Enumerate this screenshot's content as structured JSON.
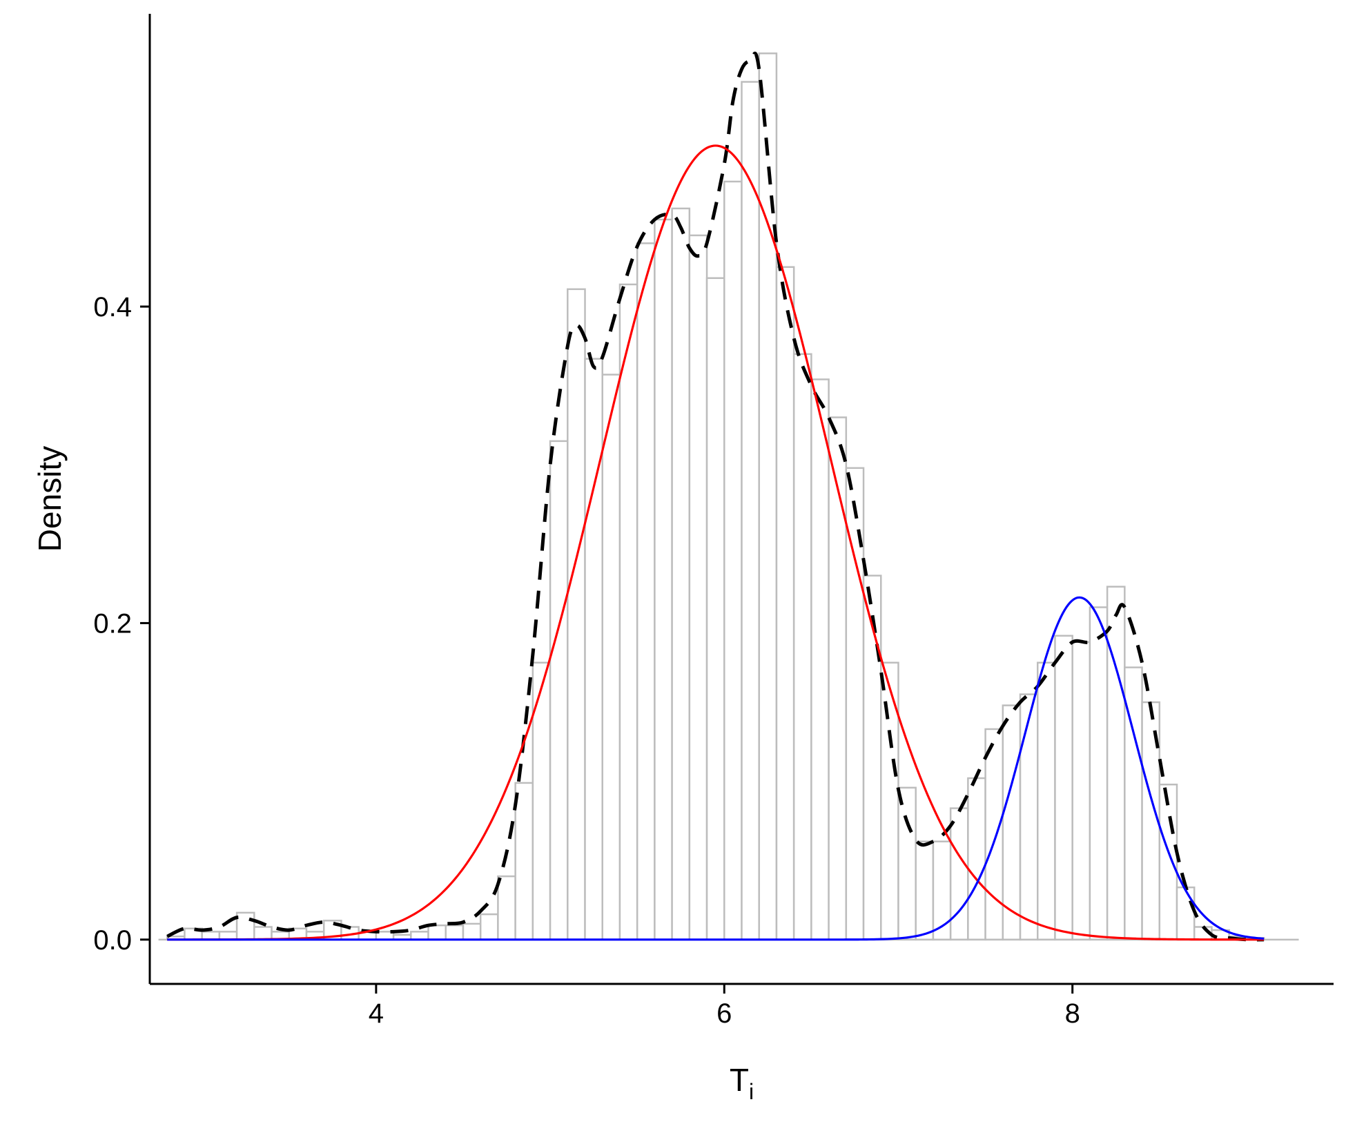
{
  "chart_data": {
    "type": "bar",
    "xlabel": "T",
    "xlabel_subscript": "i",
    "ylabel": "Density",
    "xlim": [
      2.7,
      9.5
    ],
    "ylim": [
      -0.028,
      0.585
    ],
    "x_ticks": [
      4,
      6,
      8
    ],
    "x_tick_labels": [
      "4",
      "6",
      "8"
    ],
    "y_ticks": [
      0.0,
      0.2,
      0.4
    ],
    "y_tick_labels": [
      "0.0",
      "0.2",
      "0.4"
    ],
    "grid": false,
    "histogram": {
      "bin_width": 0.1,
      "bin_starts": [
        2.8,
        2.9,
        3.0,
        3.1,
        3.2,
        3.3,
        3.4,
        3.5,
        3.6,
        3.7,
        3.8,
        3.9,
        4.0,
        4.1,
        4.2,
        4.3,
        4.4,
        4.5,
        4.6,
        4.7,
        4.8,
        4.9,
        5.0,
        5.1,
        5.2,
        5.3,
        5.4,
        5.5,
        5.6,
        5.7,
        5.8,
        5.9,
        6.0,
        6.1,
        6.2,
        6.3,
        6.4,
        6.5,
        6.6,
        6.7,
        6.8,
        6.9,
        7.0,
        7.1,
        7.2,
        7.3,
        7.4,
        7.5,
        7.6,
        7.7,
        7.8,
        7.9,
        8.0,
        8.1,
        8.2,
        8.3,
        8.4,
        8.5,
        8.6,
        8.7,
        8.8,
        8.9,
        9.0,
        9.1
      ],
      "densities": [
        0.002,
        0.007,
        0.005,
        0.005,
        0.017,
        0.008,
        0.005,
        0.007,
        0.005,
        0.012,
        0.008,
        0.005,
        0.005,
        0.003,
        0.005,
        0.009,
        0.009,
        0.01,
        0.016,
        0.04,
        0.099,
        0.175,
        0.315,
        0.411,
        0.367,
        0.357,
        0.414,
        0.44,
        0.455,
        0.462,
        0.445,
        0.418,
        0.479,
        0.542,
        0.56,
        0.425,
        0.37,
        0.354,
        0.33,
        0.298,
        0.23,
        0.175,
        0.096,
        0.062,
        0.062,
        0.083,
        0.102,
        0.133,
        0.148,
        0.155,
        0.175,
        0.192,
        0.188,
        0.21,
        0.223,
        0.172,
        0.15,
        0.098,
        0.033,
        0.008,
        0.006,
        0.002,
        0.001,
        0.0
      ],
      "color": "#bdbdbd"
    },
    "series": [
      {
        "type": "kernel-density",
        "style": "dashed",
        "color": "#000000",
        "x": [
          2.8,
          2.9,
          3.0,
          3.1,
          3.2,
          3.3,
          3.4,
          3.5,
          3.6,
          3.7,
          3.8,
          3.9,
          4.0,
          4.1,
          4.2,
          4.3,
          4.4,
          4.5,
          4.6,
          4.7,
          4.8,
          4.9,
          5.0,
          5.1,
          5.15,
          5.2,
          5.25,
          5.3,
          5.4,
          5.5,
          5.6,
          5.7,
          5.75,
          5.8,
          5.85,
          5.9,
          6.0,
          6.05,
          6.1,
          6.15,
          6.2,
          6.3,
          6.4,
          6.5,
          6.6,
          6.7,
          6.8,
          6.9,
          7.0,
          7.1,
          7.2,
          7.3,
          7.4,
          7.5,
          7.6,
          7.7,
          7.8,
          7.9,
          8.0,
          8.1,
          8.2,
          8.25,
          8.3,
          8.4,
          8.5,
          8.6,
          8.7,
          8.8,
          8.9,
          9.0,
          9.1
        ],
        "y": [
          0.002,
          0.007,
          0.006,
          0.008,
          0.014,
          0.012,
          0.008,
          0.006,
          0.009,
          0.011,
          0.009,
          0.006,
          0.005,
          0.005,
          0.006,
          0.009,
          0.01,
          0.011,
          0.018,
          0.035,
          0.085,
          0.18,
          0.3,
          0.375,
          0.388,
          0.38,
          0.362,
          0.368,
          0.405,
          0.438,
          0.455,
          0.458,
          0.45,
          0.437,
          0.432,
          0.44,
          0.49,
          0.53,
          0.55,
          0.555,
          0.55,
          0.44,
          0.38,
          0.35,
          0.33,
          0.3,
          0.24,
          0.17,
          0.095,
          0.063,
          0.062,
          0.072,
          0.092,
          0.115,
          0.135,
          0.15,
          0.16,
          0.175,
          0.188,
          0.188,
          0.195,
          0.205,
          0.21,
          0.175,
          0.115,
          0.055,
          0.018,
          0.003,
          0.001,
          0.0,
          0.0
        ]
      },
      {
        "type": "normal-curve",
        "style": "solid",
        "color": "#ff0000",
        "mean": 5.95,
        "sd": 0.66,
        "weight": 0.83,
        "x_range": [
          2.8,
          9.1
        ]
      },
      {
        "type": "normal-curve",
        "style": "solid",
        "color": "#0000ff",
        "mean": 8.04,
        "sd": 0.31,
        "weight": 0.168,
        "x_range": [
          2.8,
          9.1
        ]
      }
    ]
  }
}
